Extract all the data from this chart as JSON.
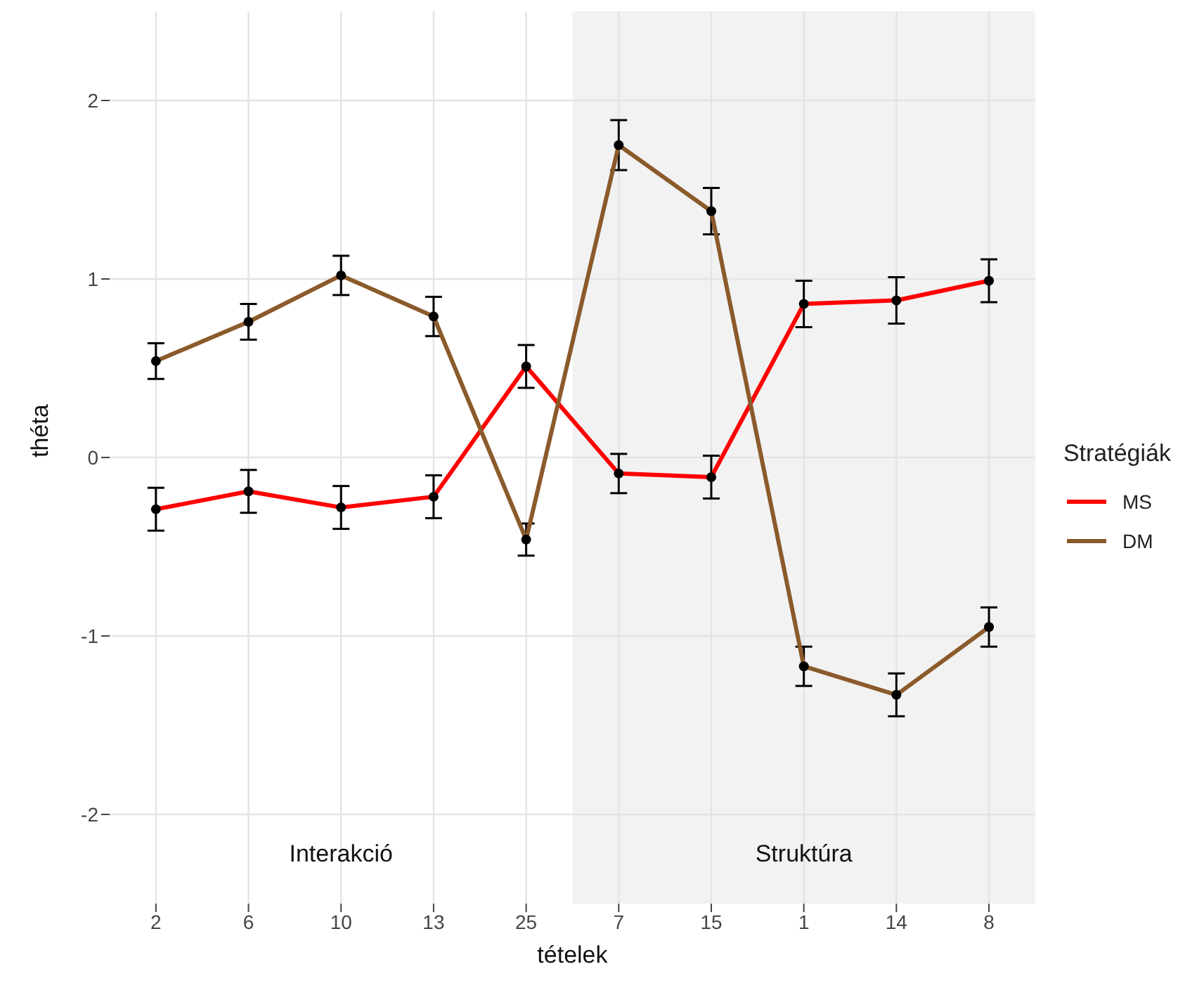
{
  "chart_data": {
    "type": "line",
    "xlabel": "tételek",
    "ylabel": "théta",
    "legend_title": "Stratégiák",
    "categories": [
      "2",
      "6",
      "10",
      "13",
      "25",
      "7",
      "15",
      "1",
      "14",
      "8"
    ],
    "series": [
      {
        "name": "MS",
        "color": "#ff0000",
        "values": [
          -0.29,
          -0.19,
          -0.28,
          -0.22,
          0.51,
          -0.09,
          -0.11,
          0.86,
          0.88,
          0.99
        ],
        "errors": [
          0.12,
          0.12,
          0.12,
          0.12,
          0.12,
          0.11,
          0.12,
          0.13,
          0.13,
          0.12
        ]
      },
      {
        "name": "DM",
        "color": "#8b5a2b",
        "values": [
          0.54,
          0.76,
          1.02,
          0.79,
          -0.46,
          1.75,
          1.38,
          -1.17,
          -1.33,
          -0.95
        ],
        "errors": [
          0.1,
          0.1,
          0.11,
          0.11,
          0.09,
          0.14,
          0.13,
          0.11,
          0.12,
          0.11
        ]
      }
    ],
    "ylim": [
      -2.5,
      2.5
    ],
    "yticks": [
      -2,
      -1,
      0,
      1,
      2
    ],
    "grid": true,
    "legend": "right",
    "marker": "circle",
    "line_style": "solid",
    "annotations": [
      "Interakció"
    ],
    "bands": [
      {
        "axis": "x",
        "from": "7",
        "to": "8",
        "label": "Struktúra",
        "color": "#f2f2f2"
      }
    ]
  }
}
